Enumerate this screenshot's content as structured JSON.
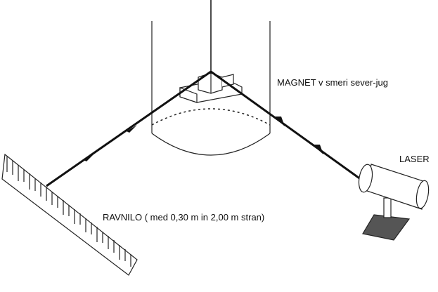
{
  "labels": {
    "magnet": "MAGNET v smeri sever-jug",
    "laser": "LASER",
    "ruler": "RAVNILO ( med 0,30 m in 2,00 m stran)"
  },
  "components": {
    "suspension_fiber": "suspension-fiber",
    "glass_cylinder": "glass-cylinder",
    "magnet_mirror": "magnet-with-mirror",
    "laser_device": "laser-device",
    "ruler_scale": "ruler-scale",
    "light_beam": "light-beam"
  },
  "colors": {
    "line": "#111111",
    "base_plate": "#555555",
    "background": "#ffffff"
  }
}
